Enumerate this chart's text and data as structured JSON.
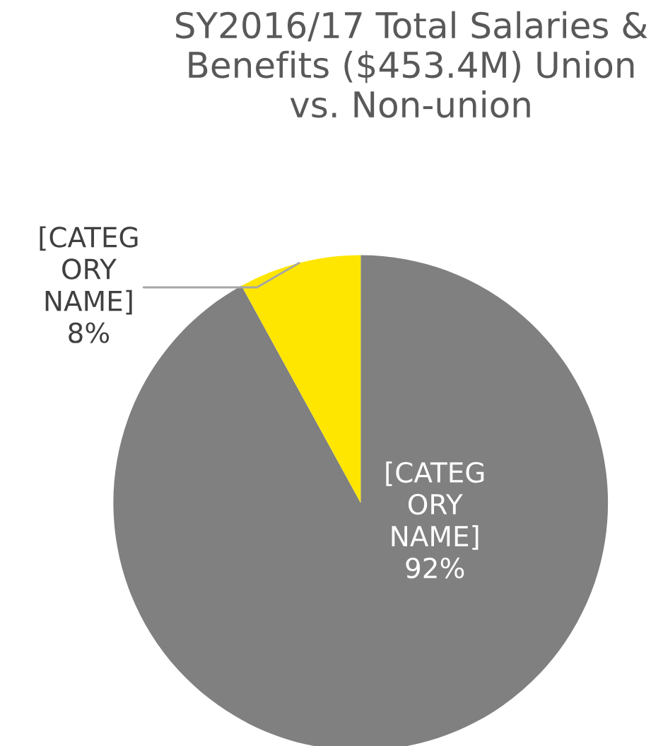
{
  "chart_data": {
    "type": "pie",
    "title": "SY2016/17 Total Salaries & Benefits ($453.4M) Union vs. Non-union",
    "categories": [
      "[CATEGORY NAME]",
      "[CATEGORY NAME]"
    ],
    "values": [
      92,
      8
    ],
    "colors": [
      "#808080",
      "#ffe600"
    ],
    "value_labels": [
      "92%",
      "8%"
    ],
    "legend": false
  }
}
